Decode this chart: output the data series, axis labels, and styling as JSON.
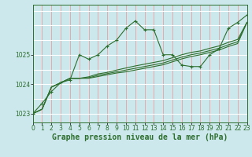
{
  "title": "Graphe pression niveau de la mer (hPa)",
  "bg_color": "#cce8ec",
  "grid_color_h": "#ffffff",
  "grid_color_v": "#f0a0a0",
  "line_color": "#2d6e2d",
  "xlim": [
    0,
    23
  ],
  "ylim": [
    1022.7,
    1026.7
  ],
  "yticks": [
    1023,
    1024,
    1025
  ],
  "xticks": [
    0,
    1,
    2,
    3,
    4,
    5,
    6,
    7,
    8,
    9,
    10,
    11,
    12,
    13,
    14,
    15,
    16,
    17,
    18,
    19,
    20,
    21,
    22,
    23
  ],
  "s_zigzag": [
    1023.0,
    1023.35,
    1023.75,
    1024.05,
    1024.15,
    1025.0,
    1024.85,
    1025.0,
    1025.3,
    1025.5,
    1025.9,
    1026.15,
    1025.85,
    1025.85,
    1025.0,
    1025.0,
    1024.65,
    1024.6,
    1024.6,
    1025.0,
    1025.2,
    1025.9,
    1026.1,
    1026.35
  ],
  "s_trend1": [
    1023.0,
    1023.15,
    1023.9,
    1024.05,
    1024.2,
    1024.2,
    1024.25,
    1024.35,
    1024.4,
    1024.48,
    1024.55,
    1024.62,
    1024.68,
    1024.74,
    1024.8,
    1024.9,
    1025.0,
    1025.08,
    1025.13,
    1025.22,
    1025.3,
    1025.42,
    1025.52,
    1026.1
  ],
  "s_trend2": [
    1023.0,
    1023.15,
    1023.9,
    1024.05,
    1024.2,
    1024.2,
    1024.22,
    1024.3,
    1024.36,
    1024.42,
    1024.48,
    1024.54,
    1024.6,
    1024.66,
    1024.72,
    1024.82,
    1024.92,
    1025.0,
    1025.06,
    1025.14,
    1025.22,
    1025.34,
    1025.44,
    1026.1
  ],
  "s_trend3": [
    1023.0,
    1023.15,
    1023.9,
    1024.05,
    1024.2,
    1024.2,
    1024.2,
    1024.26,
    1024.32,
    1024.38,
    1024.42,
    1024.48,
    1024.54,
    1024.6,
    1024.66,
    1024.76,
    1024.86,
    1024.94,
    1025.0,
    1025.08,
    1025.16,
    1025.28,
    1025.38,
    1026.1
  ],
  "title_fontsize": 7.0,
  "tick_fontsize": 5.5
}
